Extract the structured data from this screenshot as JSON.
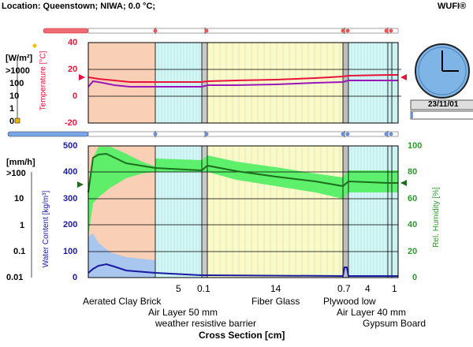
{
  "header": {
    "location": "Location: Queenstown; NIWA; 0.0 °C;",
    "brand": "WUFI®"
  },
  "top_panel": {
    "left_axis_unit": "[W/m²]",
    "left_axis_top": ">1000",
    "left_axis_ticks": [
      "100",
      "10",
      "1",
      "0"
    ],
    "temp_ylabel": "Temperature [°C]",
    "temp_ticks": [
      "40",
      "20",
      "0",
      "-20"
    ]
  },
  "bottom_panel": {
    "left_axis_unit": "[mm/h]",
    "left_axis_top": ">100",
    "left_axis_ticks": [
      "10",
      "1",
      "0.1",
      "0.01"
    ],
    "wc_ylabel": "Water Content [kg/m³]",
    "wc_ticks": [
      "500",
      "400",
      "300",
      "200",
      "100",
      "0"
    ],
    "rh_ylabel": "Rel. Humidity [%]",
    "rh_ticks": [
      "100",
      "80",
      "60",
      "40",
      "20",
      "0"
    ]
  },
  "clock": {
    "date": "23/11/01",
    "progress_fraction": 0.02
  },
  "layer_widths": [
    "5",
    "0.1",
    "14",
    "0.7",
    "4",
    "1"
  ],
  "layer_names_row1": [
    "Aerated Clay Brick",
    "Fiber Glass",
    "Plywood low"
  ],
  "layer_names_row2": [
    "Air Layer 50 mm",
    "Air Layer 40 mm"
  ],
  "layer_names_row3": [
    "weather resistive barrier",
    "Gypsum Board"
  ],
  "x_axis_label": "Cross Section [cm]",
  "colors": {
    "brick": "#f9cfb6",
    "air": "#d3f6f6",
    "fiber": "#fbfac6",
    "gypsum": "#d3f6f6",
    "temperature": "#e8133a",
    "dewpoint": "#9b16b8",
    "rh": "#2b9b2b",
    "rh_band": "#55ef66",
    "wc": "#1a1aa0",
    "wc_band": "#a8c6ee"
  }
}
